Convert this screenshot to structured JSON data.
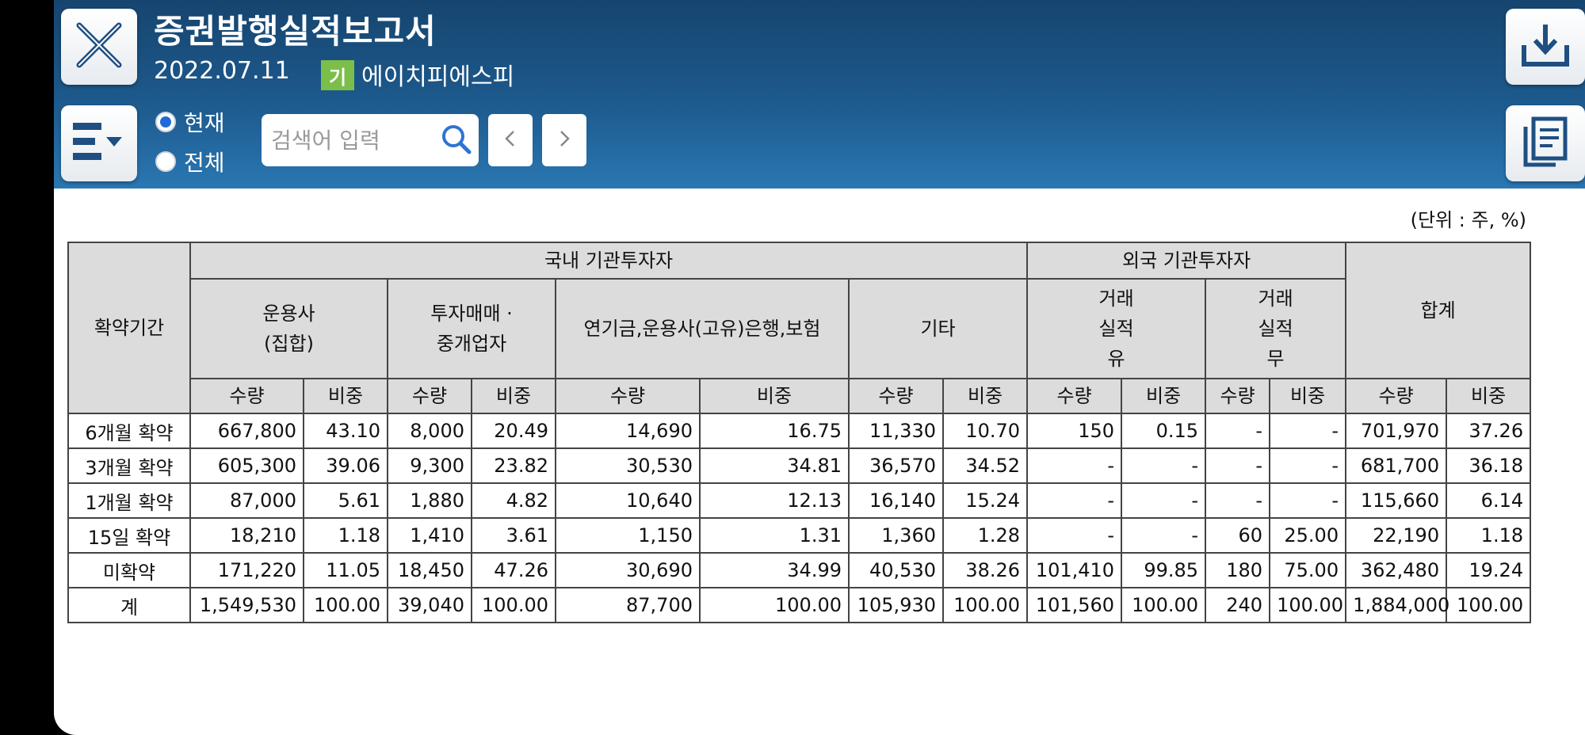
{
  "header": {
    "title": "증권발행실적보고서",
    "date": "2022.07.11",
    "badge": "기",
    "company": "에이치피에스피",
    "radio_current": "현재",
    "radio_all": "전체",
    "search_placeholder": "검색어 입력",
    "prev_label": "‹",
    "next_label": "›"
  },
  "icons": {
    "close": "close-icon",
    "menu": "menu-icon",
    "search": "search-icon",
    "download": "download-icon",
    "document": "document-icon"
  },
  "colors": {
    "header_top": "#16456f",
    "header_bottom": "#2a77b3",
    "badge": "#7bbf4a",
    "radio_selected": "#1e6bd8"
  },
  "unit": "(단위 : 주, %)",
  "table": {
    "period_header": "확약기간",
    "domestic_header": "국내 기관투자자",
    "foreign_header": "외국 기관투자자",
    "total_header": "합계",
    "col_manager": [
      "운용사",
      "(집합)"
    ],
    "col_dealer": [
      "투자매매 ·",
      "중개업자"
    ],
    "col_pension": "연기금,운용사(고유)은행,보험",
    "col_other": "기타",
    "col_foreign_yes": [
      "거래",
      "실적",
      "유"
    ],
    "col_foreign_no": [
      "거래",
      "실적",
      "무"
    ],
    "qty": "수량",
    "ratio": "비중",
    "rows": [
      [
        "6개월 확약",
        "667,800",
        "43.10",
        "8,000",
        "20.49",
        "14,690",
        "16.75",
        "11,330",
        "10.70",
        "150",
        "0.15",
        "-",
        "-",
        "701,970",
        "37.26"
      ],
      [
        "3개월 확약",
        "605,300",
        "39.06",
        "9,300",
        "23.82",
        "30,530",
        "34.81",
        "36,570",
        "34.52",
        "-",
        "-",
        "-",
        "-",
        "681,700",
        "36.18"
      ],
      [
        "1개월 확약",
        "87,000",
        "5.61",
        "1,880",
        "4.82",
        "10,640",
        "12.13",
        "16,140",
        "15.24",
        "-",
        "-",
        "-",
        "-",
        "115,660",
        "6.14"
      ],
      [
        "15일 확약",
        "18,210",
        "1.18",
        "1,410",
        "3.61",
        "1,150",
        "1.31",
        "1,360",
        "1.28",
        "-",
        "-",
        "60",
        "25.00",
        "22,190",
        "1.18"
      ],
      [
        "미확약",
        "171,220",
        "11.05",
        "18,450",
        "47.26",
        "30,690",
        "34.99",
        "40,530",
        "38.26",
        "101,410",
        "99.85",
        "180",
        "75.00",
        "362,480",
        "19.24"
      ],
      [
        "계",
        "1,549,530",
        "100.00",
        "39,040",
        "100.00",
        "87,700",
        "100.00",
        "105,930",
        "100.00",
        "101,560",
        "100.00",
        "240",
        "100.00",
        "1,884,000",
        "100.00"
      ]
    ]
  }
}
